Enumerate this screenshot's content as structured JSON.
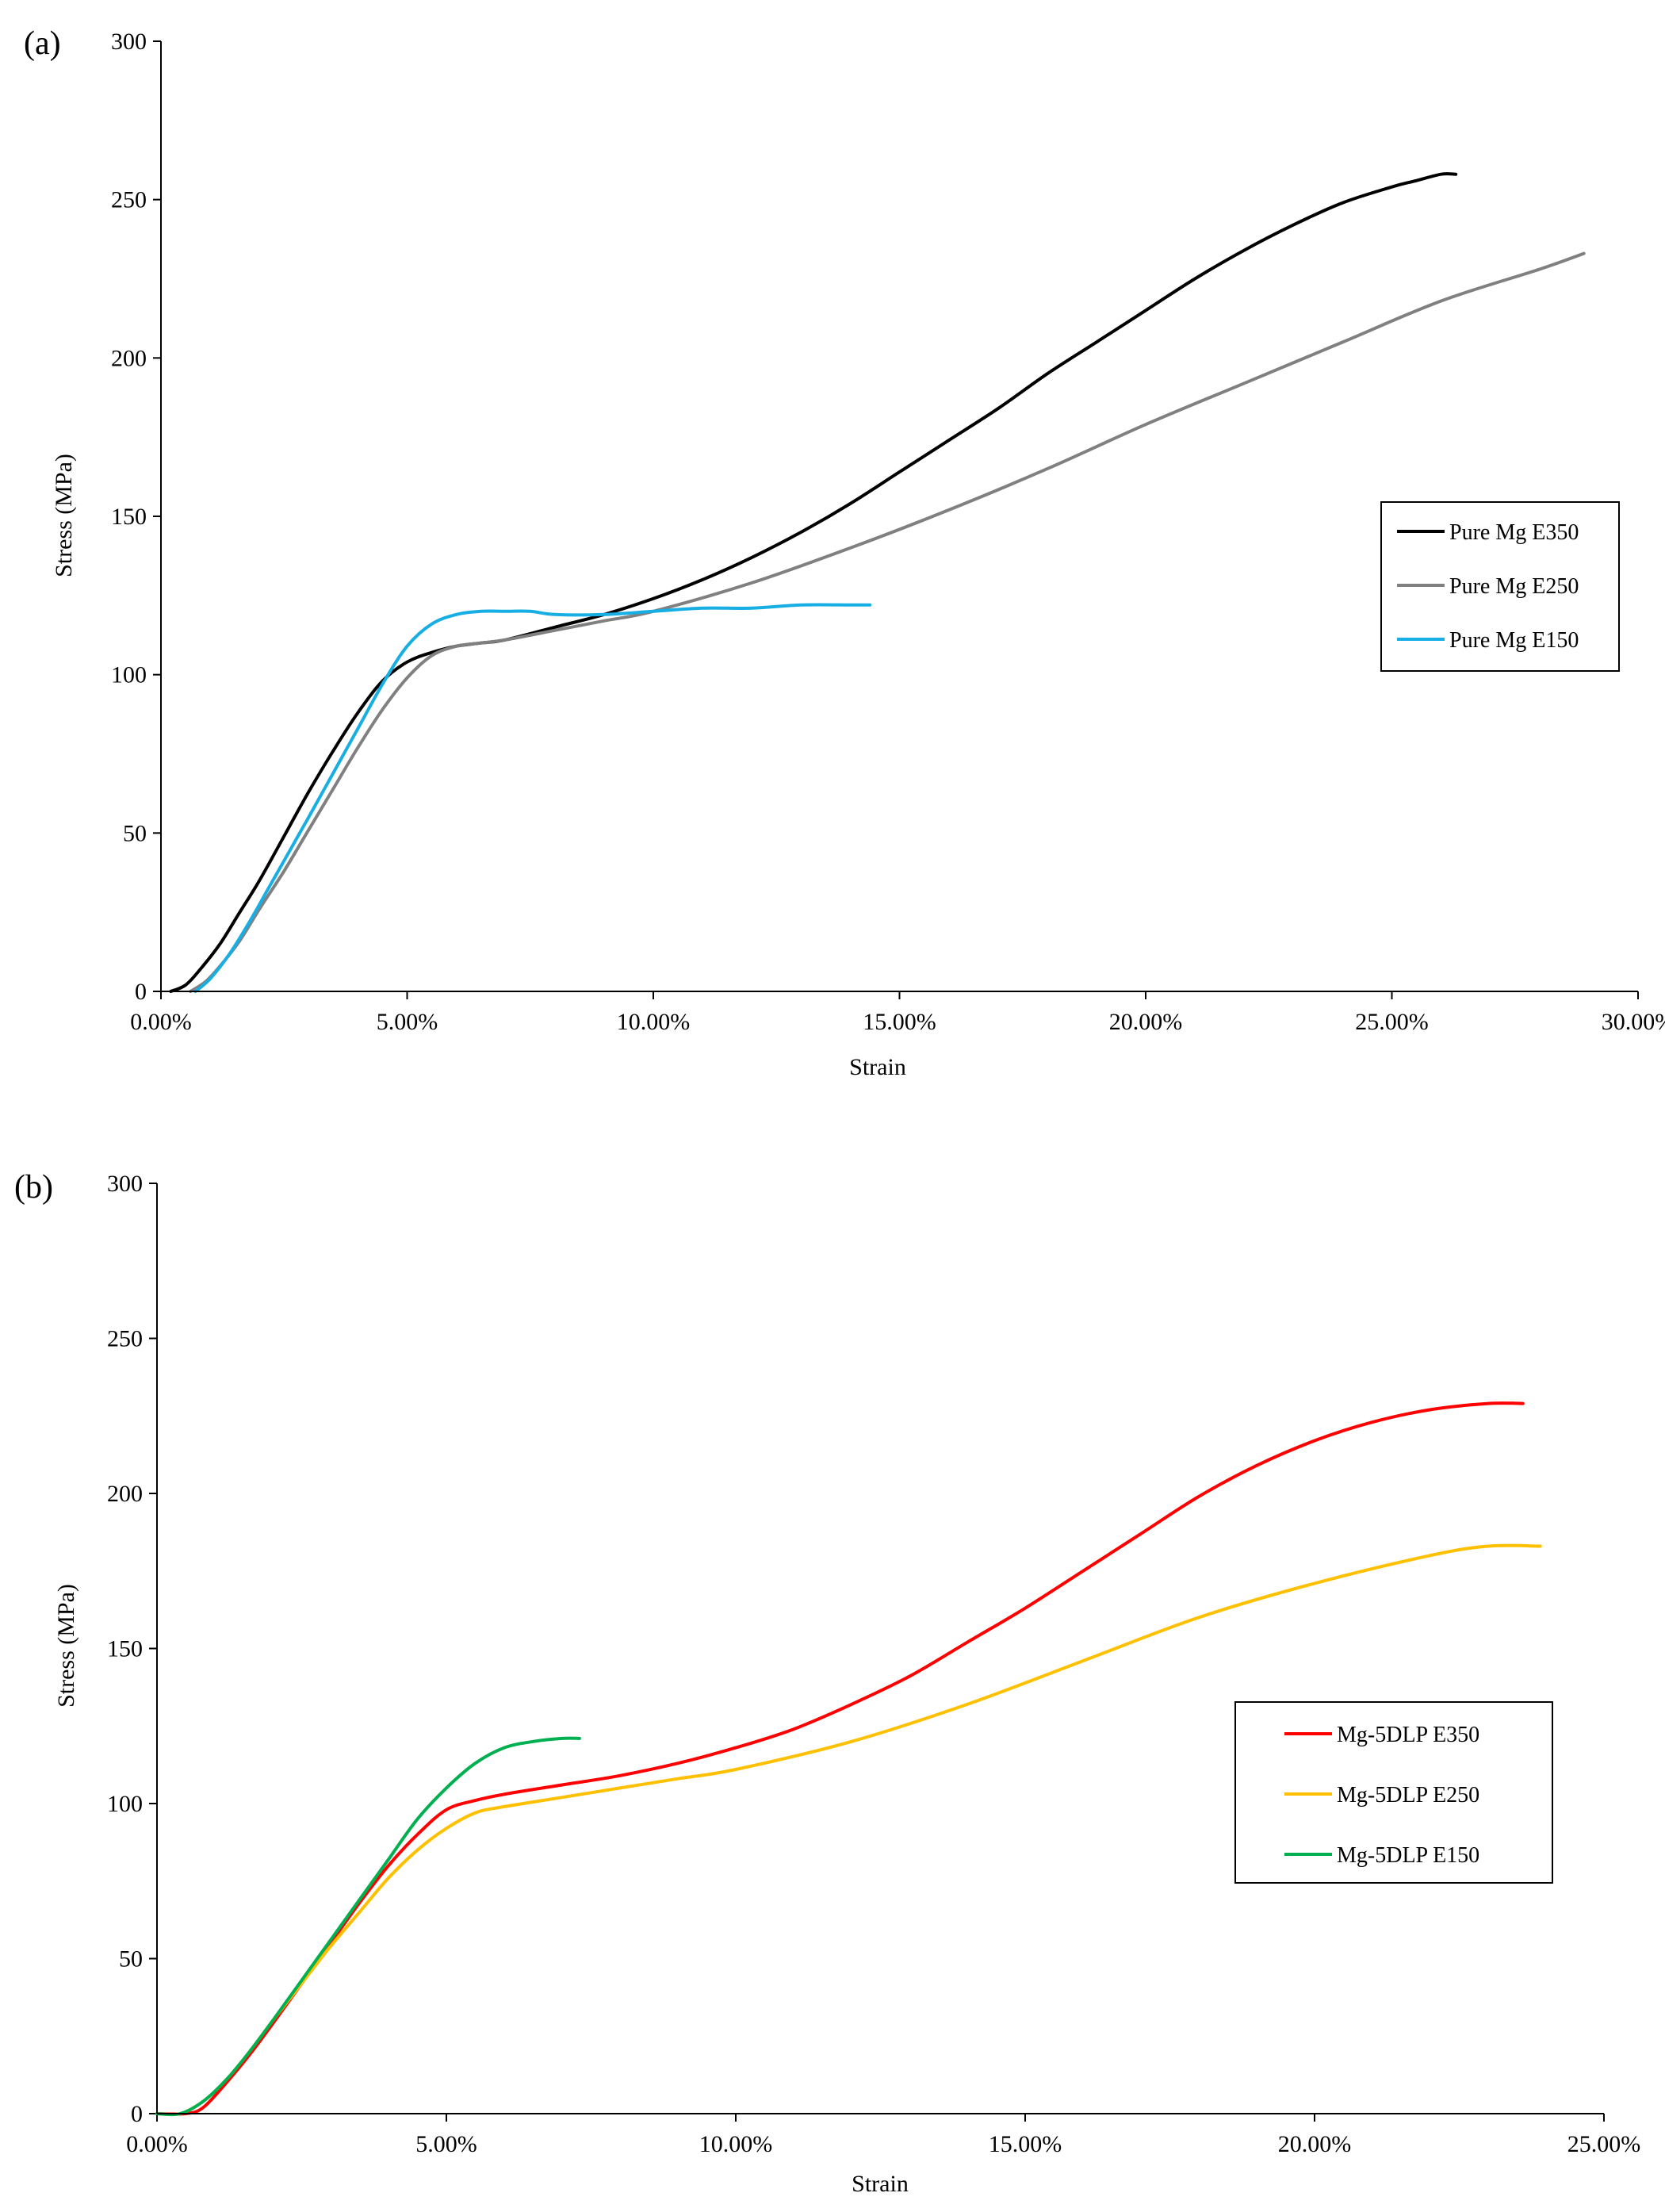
{
  "chart_data": [
    {
      "type": "line",
      "panel_label": "(a)",
      "xlabel": "Strain",
      "ylabel": "Stress (MPa)",
      "xlim": [
        0,
        0.3
      ],
      "ylim": [
        0,
        300
      ],
      "x_ticks": [
        0,
        0.05,
        0.1,
        0.15,
        0.2,
        0.25,
        0.3
      ],
      "x_tick_labels": [
        "0.00%",
        "5.00%",
        "10.00%",
        "15.00%",
        "20.00%",
        "25.00%",
        "30.00%"
      ],
      "y_ticks": [
        0,
        50,
        100,
        150,
        200,
        250,
        300
      ],
      "y_tick_labels": [
        "0",
        "50",
        "100",
        "150",
        "200",
        "250",
        "300"
      ],
      "legend_position": "right-middle",
      "series": [
        {
          "name": "Pure Mg E350",
          "color": "#000000",
          "x": [
            0.002,
            0.005,
            0.008,
            0.012,
            0.016,
            0.02,
            0.025,
            0.03,
            0.035,
            0.04,
            0.045,
            0.05,
            0.055,
            0.06,
            0.065,
            0.07,
            0.08,
            0.09,
            0.1,
            0.11,
            0.12,
            0.13,
            0.14,
            0.15,
            0.16,
            0.17,
            0.18,
            0.19,
            0.2,
            0.21,
            0.22,
            0.23,
            0.24,
            0.25,
            0.255,
            0.26,
            0.263
          ],
          "y": [
            0,
            2,
            7,
            15,
            25,
            35,
            49,
            63,
            76,
            88,
            98,
            104,
            107,
            109,
            110,
            111,
            115,
            119,
            124,
            130,
            137,
            145,
            154,
            164,
            174,
            184,
            195,
            205,
            215,
            225,
            234,
            242,
            249,
            254,
            256,
            258,
            258
          ]
        },
        {
          "name": "Pure Mg E250",
          "color": "#808080",
          "x": [
            0.006,
            0.009,
            0.012,
            0.016,
            0.02,
            0.025,
            0.03,
            0.035,
            0.04,
            0.045,
            0.05,
            0.055,
            0.06,
            0.065,
            0.07,
            0.08,
            0.09,
            0.1,
            0.12,
            0.14,
            0.16,
            0.18,
            0.2,
            0.22,
            0.24,
            0.26,
            0.28,
            0.289
          ],
          "y": [
            0,
            3,
            8,
            16,
            26,
            38,
            51,
            64,
            77,
            89,
            99,
            106,
            109,
            110,
            111,
            114,
            117,
            120,
            129,
            140,
            152,
            165,
            179,
            192,
            205,
            218,
            228,
            233
          ]
        },
        {
          "name": "Pure Mg E150",
          "color": "#17aee4",
          "x": [
            0.007,
            0.01,
            0.014,
            0.018,
            0.022,
            0.026,
            0.03,
            0.035,
            0.04,
            0.045,
            0.05,
            0.055,
            0.06,
            0.065,
            0.07,
            0.075,
            0.08,
            0.09,
            0.1,
            0.11,
            0.12,
            0.13,
            0.14,
            0.144
          ],
          "y": [
            0,
            4,
            12,
            22,
            33,
            44,
            55,
            69,
            83,
            97,
            109,
            116,
            119,
            120,
            120,
            120,
            119,
            119,
            120,
            121,
            121,
            122,
            122,
            122
          ]
        }
      ]
    },
    {
      "type": "line",
      "panel_label": "(b)",
      "xlabel": "Strain",
      "ylabel": "Stress (MPa)",
      "xlim": [
        0,
        0.25
      ],
      "ylim": [
        0,
        300
      ],
      "x_ticks": [
        0,
        0.05,
        0.1,
        0.15,
        0.2,
        0.25
      ],
      "x_tick_labels": [
        "0.00%",
        "5.00%",
        "10.00%",
        "15.00%",
        "20.00%",
        "25.00%"
      ],
      "y_ticks": [
        0,
        50,
        100,
        150,
        200,
        250,
        300
      ],
      "y_tick_labels": [
        "0",
        "50",
        "100",
        "150",
        "200",
        "250",
        "300"
      ],
      "legend_position": "right-middle",
      "series": [
        {
          "name": "Mg-5DLP E350",
          "color": "#ff0000",
          "x": [
            0,
            0.005,
            0.008,
            0.012,
            0.016,
            0.02,
            0.025,
            0.03,
            0.035,
            0.04,
            0.045,
            0.05,
            0.055,
            0.06,
            0.07,
            0.08,
            0.09,
            0.1,
            0.11,
            0.12,
            0.13,
            0.14,
            0.15,
            0.16,
            0.17,
            0.18,
            0.19,
            0.2,
            0.21,
            0.22,
            0.23,
            0.236
          ],
          "y": [
            0,
            0,
            2,
            10,
            19,
            29,
            42,
            55,
            68,
            80,
            90,
            98,
            101,
            103,
            106,
            109,
            113,
            118,
            124,
            132,
            141,
            152,
            163,
            175,
            187,
            199,
            209,
            217,
            223,
            227,
            229,
            229
          ]
        },
        {
          "name": "Mg-5DLP E250",
          "color": "#ffc000",
          "x": [
            0,
            0.004,
            0.008,
            0.012,
            0.016,
            0.02,
            0.025,
            0.03,
            0.035,
            0.04,
            0.045,
            0.05,
            0.055,
            0.06,
            0.07,
            0.08,
            0.09,
            0.1,
            0.12,
            0.14,
            0.16,
            0.18,
            0.2,
            0.22,
            0.23,
            0.239
          ],
          "y": [
            0,
            0,
            4,
            11,
            20,
            30,
            42,
            54,
            65,
            76,
            85,
            92,
            97,
            99,
            102,
            105,
            108,
            111,
            120,
            132,
            146,
            160,
            171,
            180,
            183,
            183
          ]
        },
        {
          "name": "Mg-5DLP E150",
          "color": "#00b050",
          "x": [
            0,
            0.004,
            0.008,
            0.012,
            0.016,
            0.02,
            0.025,
            0.03,
            0.035,
            0.04,
            0.045,
            0.05,
            0.055,
            0.06,
            0.065,
            0.07,
            0.073
          ],
          "y": [
            0,
            0,
            4,
            11,
            20,
            30,
            43,
            56,
            69,
            82,
            95,
            105,
            113,
            118,
            120,
            121,
            121
          ]
        }
      ]
    }
  ]
}
